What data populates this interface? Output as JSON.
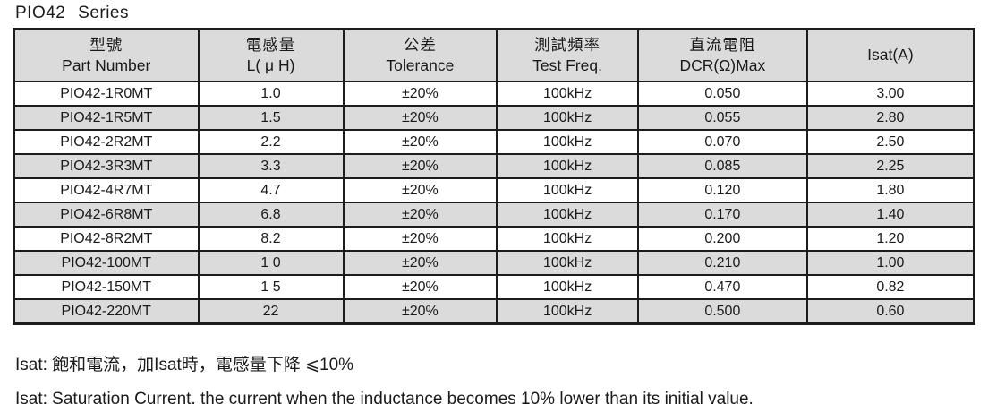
{
  "title": "PIO42 Series",
  "table": {
    "columns": [
      {
        "zh": "型號",
        "en": "Part Number"
      },
      {
        "zh": "電感量",
        "en": "L( μ H)"
      },
      {
        "zh": "公差",
        "en": "Tolerance"
      },
      {
        "zh": "測試頻率",
        "en": "Test Freq."
      },
      {
        "zh": "直流電阻",
        "en": "DCR(Ω)Max"
      },
      {
        "zh": "",
        "en": "Isat(A)"
      }
    ],
    "rows": [
      [
        "PIO42-1R0MT",
        "1.0",
        "±20%",
        "100kHz",
        "0.050",
        "3.00"
      ],
      [
        "PIO42-1R5MT",
        "1.5",
        "±20%",
        "100kHz",
        "0.055",
        "2.80"
      ],
      [
        "PIO42-2R2MT",
        "2.2",
        "±20%",
        "100kHz",
        "0.070",
        "2.50"
      ],
      [
        "PIO42-3R3MT",
        "3.3",
        "±20%",
        "100kHz",
        "0.085",
        "2.25"
      ],
      [
        "PIO42-4R7MT",
        "4.7",
        "±20%",
        "100kHz",
        "0.120",
        "1.80"
      ],
      [
        "PIO42-6R8MT",
        "6.8",
        "±20%",
        "100kHz",
        "0.170",
        "1.40"
      ],
      [
        "PIO42-8R2MT",
        "8.2",
        "±20%",
        "100kHz",
        "0.200",
        "1.20"
      ],
      [
        "PIO42-100MT",
        "1 0",
        "±20%",
        "100kHz",
        "0.210",
        "1.00"
      ],
      [
        "PIO42-150MT",
        "1 5",
        "±20%",
        "100kHz",
        "0.470",
        "0.82"
      ],
      [
        "PIO42-220MT",
        "22",
        "±20%",
        "100kHz",
        "0.500",
        "0.60"
      ]
    ]
  },
  "notes": {
    "zh": "Isat: 飽和電流，加Isat時，電感量下降 ⩽10%",
    "en": "Isat: Saturation Current, the current when the inductance becomes 10% lower than its initial value."
  },
  "colors": {
    "page_bg": "#ffffff",
    "header_bg": "#dbdbdb",
    "alt_row_bg": "#dbdbdb",
    "border": "#1c1c1c",
    "text": "#1a1a1a"
  }
}
